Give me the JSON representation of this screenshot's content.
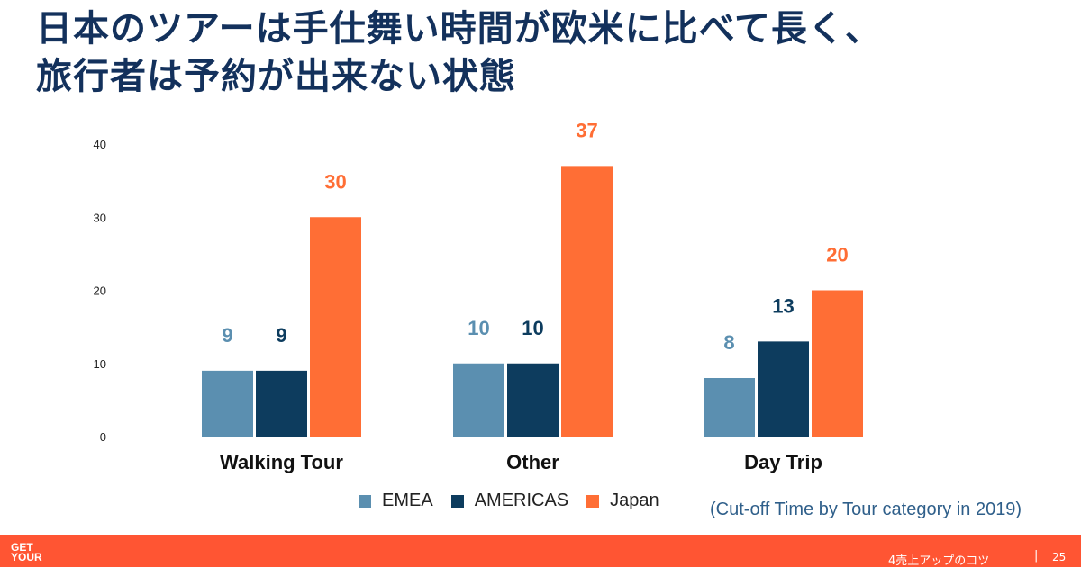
{
  "title": {
    "line1": "日本のツアーは手仕舞い時間が欧米に比べて長く、",
    "line2": "旅行者は予約が出来ない状態"
  },
  "chart_data": {
    "type": "bar",
    "categories": [
      "Walking Tour",
      "Other",
      "Day Trip"
    ],
    "series": [
      {
        "name": "EMEA",
        "values": [
          9,
          10,
          8
        ],
        "color": "#5b8fb0"
      },
      {
        "name": "AMERICAS",
        "values": [
          9,
          10,
          13
        ],
        "color": "#0d3c5e"
      },
      {
        "name": "Japan",
        "values": [
          30,
          37,
          20
        ],
        "color": "#ff6e35"
      }
    ],
    "ylim": [
      0,
      40
    ],
    "yticks": [
      0,
      10,
      20,
      30,
      40
    ],
    "grid": false,
    "legend_position": "bottom"
  },
  "caption": "(Cut-off Time by Tour category in 2019)",
  "footer": {
    "logo": [
      "GET",
      "YOUR"
    ],
    "text": "4売上アップのコツ",
    "separator": "|",
    "page": "25"
  },
  "colors": {
    "title": "#13315c",
    "footer": "#ff5533"
  }
}
